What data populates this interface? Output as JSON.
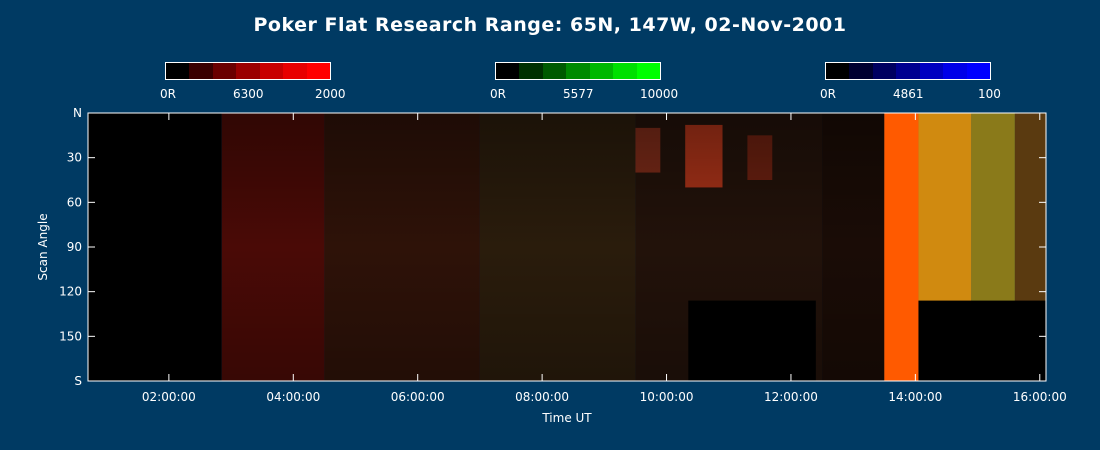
{
  "title": "Poker Flat Research Range: 65N, 147W, 02-Nov-2001",
  "colorbars": [
    {
      "low": "0R",
      "mid": "6300",
      "high": "2000",
      "colors": [
        "#000000",
        "#3a0000",
        "#6a0000",
        "#9a0000",
        "#c80000",
        "#e80000",
        "#ff0000"
      ]
    },
    {
      "low": "0R",
      "mid": "5577",
      "high": "10000",
      "colors": [
        "#000000",
        "#003000",
        "#005a00",
        "#008a00",
        "#00b800",
        "#00e000",
        "#00ff00"
      ]
    },
    {
      "low": "0R",
      "mid": "4861",
      "high": "100",
      "colors": [
        "#000000",
        "#000030",
        "#000060",
        "#000090",
        "#0000c0",
        "#0000e8",
        "#0000ff"
      ]
    }
  ],
  "chart_data": {
    "type": "heatmap",
    "title": "Poker Flat Research Range: 65N, 147W, 02-Nov-2001",
    "xlabel": "Time UT",
    "ylabel": "Scan Angle",
    "x_ticks": [
      "02:00:00",
      "04:00:00",
      "06:00:00",
      "08:00:00",
      "10:00:00",
      "12:00:00",
      "14:00:00",
      "16:00:00"
    ],
    "y_ticks": [
      "N",
      "30",
      "60",
      "90",
      "120",
      "150",
      "S"
    ],
    "xlim_hours": [
      0.7,
      16.1
    ],
    "ylim_deg": [
      0,
      180
    ],
    "regions": [
      {
        "t0": 0.7,
        "t1": 2.85,
        "a0": 0,
        "a1": 180,
        "color": "#000000"
      },
      {
        "t0": 2.85,
        "t1": 4.5,
        "a0": 0,
        "a1": 180,
        "color": "#4a0a06"
      },
      {
        "t0": 4.5,
        "t1": 7.0,
        "a0": 0,
        "a1": 180,
        "color": "#2e1208"
      },
      {
        "t0": 7.0,
        "t1": 9.5,
        "a0": 0,
        "a1": 180,
        "color": "#2a1c0c"
      },
      {
        "t0": 9.5,
        "t1": 12.5,
        "a0": 0,
        "a1": 180,
        "color": "#22120a"
      },
      {
        "t0": 12.5,
        "t1": 13.5,
        "a0": 0,
        "a1": 180,
        "color": "#1a0c06"
      },
      {
        "t0": 13.5,
        "t1": 14.05,
        "a0": 0,
        "a1": 180,
        "color": "#ff5a00"
      },
      {
        "t0": 14.05,
        "t1": 14.9,
        "a0": 0,
        "a1": 180,
        "color": "#d08a10"
      },
      {
        "t0": 14.9,
        "t1": 15.6,
        "a0": 0,
        "a1": 180,
        "color": "#8a7a1a"
      },
      {
        "t0": 15.6,
        "t1": 16.1,
        "a0": 0,
        "a1": 180,
        "color": "#5a3a10"
      },
      {
        "t0": 9.5,
        "t1": 9.9,
        "a0": 10,
        "a1": 40,
        "color": "#7a2a18"
      },
      {
        "t0": 10.3,
        "t1": 10.9,
        "a0": 8,
        "a1": 50,
        "color": "#a83218"
      },
      {
        "t0": 11.3,
        "t1": 11.7,
        "a0": 15,
        "a1": 45,
        "color": "#6a2010"
      },
      {
        "t0": 10.35,
        "t1": 12.4,
        "a0": 126,
        "a1": 180,
        "color": "#000000"
      },
      {
        "t0": 14.05,
        "t1": 16.1,
        "a0": 126,
        "a1": 180,
        "color": "#000000"
      }
    ]
  }
}
